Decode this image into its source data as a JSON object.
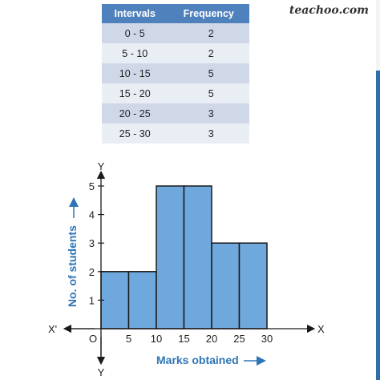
{
  "watermark": "teachoo.com",
  "table": {
    "headers": [
      "Intervals",
      "Frequency"
    ],
    "rows": [
      [
        "0 - 5",
        "2"
      ],
      [
        "5 - 10",
        "2"
      ],
      [
        "10 - 15",
        "5"
      ],
      [
        "15 - 20",
        "5"
      ],
      [
        "20 - 25",
        "3"
      ],
      [
        "25 - 30",
        "3"
      ]
    ]
  },
  "colors": {
    "bar_fill": "#6fa8dc",
    "bar_stroke": "#1a1a1a",
    "label_color": "#2e75b6",
    "header_bg": "#4f81bd"
  },
  "chart_data": {
    "type": "bar",
    "bins": [
      [
        0,
        5
      ],
      [
        5,
        10
      ],
      [
        10,
        15
      ],
      [
        15,
        20
      ],
      [
        20,
        25
      ],
      [
        25,
        30
      ]
    ],
    "values": [
      2,
      2,
      5,
      5,
      3,
      3
    ],
    "x_ticks": [
      "5",
      "10",
      "15",
      "20",
      "25",
      "30"
    ],
    "y_ticks": [
      "1",
      "2",
      "3",
      "4",
      "5"
    ],
    "xlim": [
      0,
      30
    ],
    "ylim": [
      0,
      5
    ],
    "xlabel": "Marks obtained",
    "ylabel": "No. of students",
    "axis_labels": {
      "x_pos": "X",
      "x_neg": "X'",
      "y_pos": "Y",
      "y_neg": "Y",
      "origin": "O"
    },
    "grid": false
  }
}
